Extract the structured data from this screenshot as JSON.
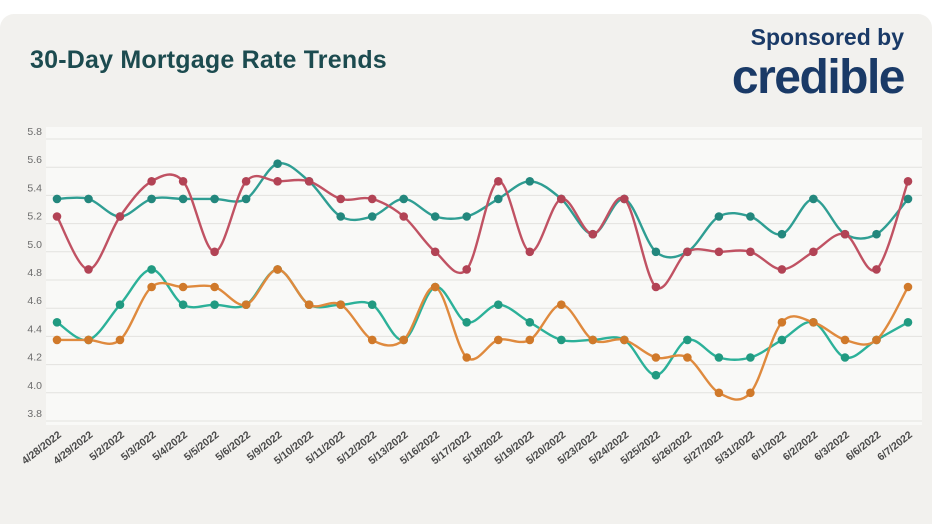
{
  "page": {
    "title": "30-Day Mortgage Rate Trends",
    "sponsor": {
      "label": "Sponsored by",
      "brand": "credible"
    }
  },
  "colors": {
    "page_background": "#ffffff",
    "card_background": "#f2f1ee",
    "plot_background": "rgba(255,255,255,0.55)",
    "gridline": "#e3e2df",
    "title_text": "#1c4b4f",
    "brand_text": "#1a3a67",
    "y_axis_label": "#6b6b6b",
    "x_axis_label": "#4a4a4a"
  },
  "chart_data": {
    "type": "line",
    "title": "30-Day Mortgage Rate Trends",
    "xlabel": "",
    "ylabel": "",
    "ylim": [
      3.8,
      5.8
    ],
    "ytick_step": 0.2,
    "grid": true,
    "legend_position": "none",
    "x": [
      "4/28/2022",
      "4/29/2022",
      "5/2/2022",
      "5/3/2022",
      "5/4/2022",
      "5/5/2022",
      "5/6/2022",
      "5/9/2022",
      "5/10/2022",
      "5/11/2022",
      "5/12/2022",
      "5/13/2022",
      "5/16/2022",
      "5/17/2022",
      "5/18/2022",
      "5/19/2022",
      "5/20/2022",
      "5/23/2022",
      "5/24/2022",
      "5/25/2022",
      "5/26/2022",
      "5/27/2022",
      "5/31/2022",
      "6/1/2022",
      "6/2/2022",
      "6/3/2022",
      "6/6/2022",
      "6/7/2022"
    ],
    "series": [
      {
        "name": "teal-upper",
        "color": "#2f9e93",
        "dot_color": "#23877d",
        "values": [
          5.375,
          5.375,
          5.25,
          5.375,
          5.375,
          5.375,
          5.375,
          5.625,
          5.5,
          5.25,
          5.25,
          5.375,
          5.25,
          5.25,
          5.375,
          5.5,
          5.375,
          5.125,
          5.375,
          5.0,
          5.0,
          5.25,
          5.25,
          5.125,
          5.375,
          5.125,
          5.125,
          5.375
        ]
      },
      {
        "name": "red",
        "color": "#c05263",
        "dot_color": "#b24355",
        "values": [
          5.25,
          4.875,
          5.25,
          5.5,
          5.5,
          5.0,
          5.5,
          5.5,
          5.5,
          5.375,
          5.375,
          5.25,
          5.0,
          4.875,
          5.5,
          5.0,
          5.375,
          5.125,
          5.375,
          4.75,
          5.0,
          5.0,
          5.0,
          4.875,
          5.0,
          5.125,
          4.875,
          5.5
        ]
      },
      {
        "name": "teal-lower",
        "color": "#2cb199",
        "dot_color": "#219a81",
        "values": [
          4.5,
          4.375,
          4.625,
          4.875,
          4.625,
          4.625,
          4.625,
          4.875,
          4.625,
          4.625,
          4.625,
          4.375,
          4.75,
          4.5,
          4.625,
          4.5,
          4.375,
          4.375,
          4.375,
          4.125,
          4.375,
          4.25,
          4.25,
          4.375,
          4.5,
          4.25,
          4.375,
          4.5
        ]
      },
      {
        "name": "orange",
        "color": "#df8a3e",
        "dot_color": "#d0792a",
        "values": [
          4.375,
          4.375,
          4.375,
          4.75,
          4.75,
          4.75,
          4.625,
          4.875,
          4.625,
          4.625,
          4.375,
          4.375,
          4.75,
          4.25,
          4.375,
          4.375,
          4.625,
          4.375,
          4.375,
          4.25,
          4.25,
          4.0,
          4.0,
          4.5,
          4.5,
          4.375,
          4.375,
          4.75
        ]
      }
    ]
  }
}
